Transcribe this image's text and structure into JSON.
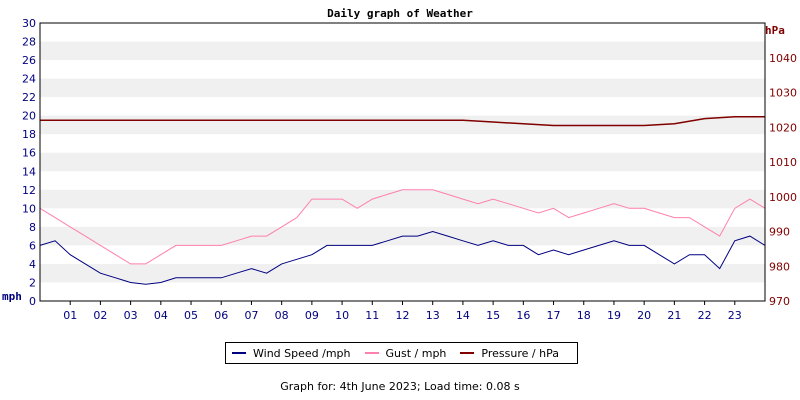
{
  "chart_data": {
    "type": "line",
    "title": "Daily graph of Weather",
    "left_axis": {
      "label": "mph",
      "ylim": [
        0,
        30
      ],
      "ticks": [
        0,
        2,
        4,
        6,
        8,
        10,
        12,
        14,
        16,
        18,
        20,
        22,
        24,
        26,
        28,
        30
      ],
      "color": "#000080"
    },
    "right_axis": {
      "label": "hPa",
      "ylim": [
        970,
        1050
      ],
      "ticks": [
        970,
        980,
        990,
        1000,
        1010,
        1020,
        1030,
        1040
      ],
      "color": "#800000"
    },
    "x_axis": {
      "xlim": [
        0,
        24
      ],
      "tick_labels": [
        "01",
        "02",
        "03",
        "04",
        "05",
        "06",
        "07",
        "08",
        "09",
        "10",
        "11",
        "12",
        "13",
        "14",
        "15",
        "16",
        "17",
        "18",
        "19",
        "20",
        "21",
        "22",
        "23"
      ]
    },
    "grid": "horizontal bands",
    "legend_position": "bottom",
    "series": [
      {
        "name": "Wind Speed /mph",
        "color": "#000080",
        "axis": "left",
        "x": [
          0,
          0.5,
          1,
          1.5,
          2,
          2.5,
          3,
          3.5,
          4,
          4.5,
          5,
          5.5,
          6,
          6.5,
          7,
          7.5,
          8,
          8.5,
          9,
          9.5,
          10,
          10.5,
          11,
          11.5,
          12,
          12.5,
          13,
          13.5,
          14,
          14.5,
          15,
          15.5,
          16,
          16.5,
          17,
          17.5,
          18,
          18.5,
          19,
          19.5,
          20,
          20.5,
          21,
          21.5,
          22,
          22.5,
          23,
          23.5,
          24
        ],
        "values": [
          6,
          6.5,
          5,
          4,
          3,
          2.5,
          2,
          1.8,
          2,
          2.5,
          2.5,
          2.5,
          2.5,
          3,
          3.5,
          3,
          4,
          4.5,
          5,
          6,
          6,
          6,
          6,
          6.5,
          7,
          7,
          7.5,
          7,
          6.5,
          6,
          6.5,
          6,
          6,
          5,
          5.5,
          5,
          5.5,
          6,
          6.5,
          6,
          6,
          5,
          4,
          5,
          5,
          3.5,
          6.5,
          7,
          6
        ]
      },
      {
        "name": "Gust / mph",
        "color": "#ff7fae",
        "axis": "left",
        "x": [
          0,
          0.5,
          1,
          1.5,
          2,
          2.5,
          3,
          3.5,
          4,
          4.5,
          5,
          5.5,
          6,
          6.5,
          7,
          7.5,
          8,
          8.5,
          9,
          9.5,
          10,
          10.5,
          11,
          11.5,
          12,
          12.5,
          13,
          13.5,
          14,
          14.5,
          15,
          15.5,
          16,
          16.5,
          17,
          17.5,
          18,
          18.5,
          19,
          19.5,
          20,
          20.5,
          21,
          21.5,
          22,
          22.5,
          23,
          23.5,
          24
        ],
        "values": [
          10,
          9,
          8,
          7,
          6,
          5,
          4,
          4,
          5,
          6,
          6,
          6,
          6,
          6.5,
          7,
          7,
          8,
          9,
          11,
          11,
          11,
          10,
          11,
          11.5,
          12,
          12,
          12,
          11.5,
          11,
          10.5,
          11,
          10.5,
          10,
          9.5,
          10,
          9,
          9.5,
          10,
          10.5,
          10,
          10,
          9.5,
          9,
          9,
          8,
          7,
          10,
          11,
          10
        ]
      },
      {
        "name": "Pressure / hPa",
        "color": "#800000",
        "axis": "right",
        "x": [
          0,
          1,
          2,
          3,
          4,
          5,
          6,
          7,
          8,
          9,
          10,
          11,
          12,
          13,
          14,
          15,
          16,
          17,
          18,
          19,
          20,
          21,
          22,
          23,
          24
        ],
        "values": [
          1022,
          1022,
          1022,
          1022,
          1022,
          1022,
          1022,
          1022,
          1022,
          1022,
          1022,
          1022,
          1022,
          1022,
          1022,
          1021.5,
          1021,
          1020.5,
          1020.5,
          1020.5,
          1020.5,
          1021,
          1022.5,
          1023,
          1023
        ]
      }
    ]
  },
  "footer": "Graph for: 4th June 2023; Load time: 0.08 s"
}
